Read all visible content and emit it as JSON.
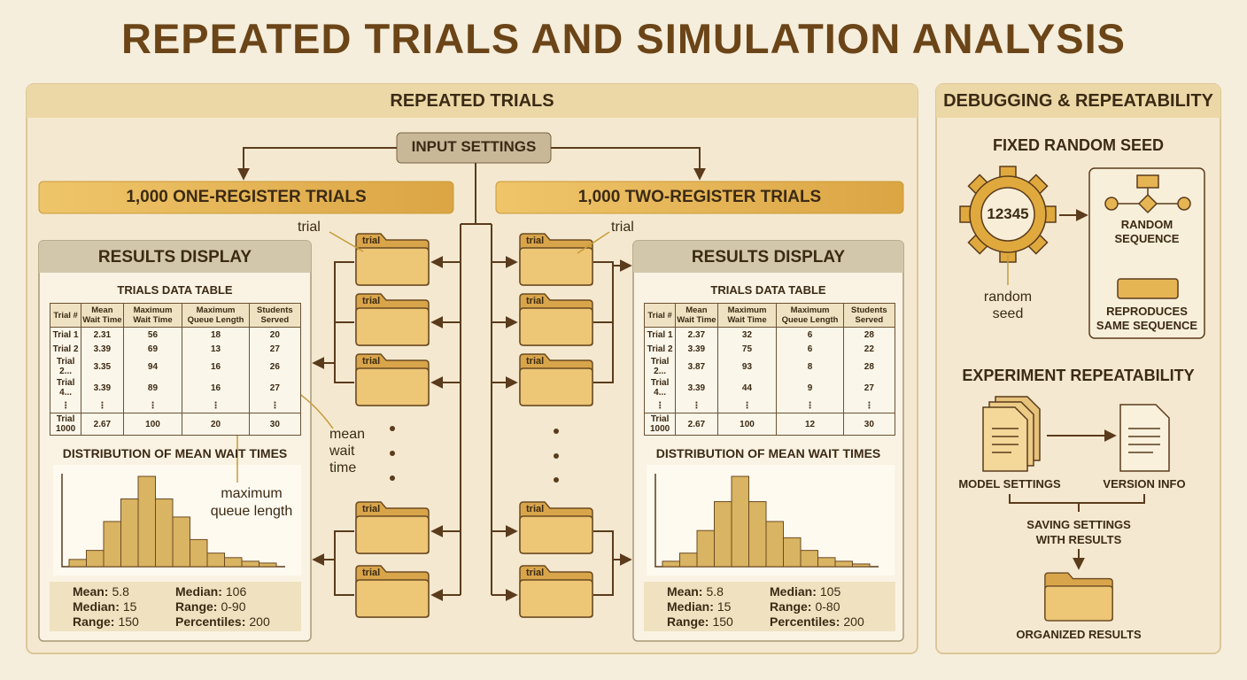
{
  "title": "REPEATED TRIALS AND SIMULATION ANALYSIS",
  "repeated_trials": {
    "heading": "REPEATED TRIALS",
    "input": "INPUT SETTINGS",
    "folder_label": "trial",
    "callouts": {
      "trial": "trial",
      "mean": "mean wait time",
      "queue": "maximum queue length"
    },
    "left": {
      "banner": "1,000 ONE-REGISTER TRIALS",
      "results": {
        "heading": "RESULTS DISPLAY",
        "table_title": "TRIALS DATA TABLE",
        "columns": [
          "Trial #",
          "Mean Wait Time",
          "Maximum Wait Time",
          "Maximum Queue Length",
          "Students Served"
        ],
        "rows": [
          [
            "Trial 1",
            "2.31",
            "56",
            "18",
            "20"
          ],
          [
            "Trial 2",
            "3.39",
            "69",
            "13",
            "27"
          ],
          [
            "Trial 2...",
            "3.35",
            "94",
            "16",
            "26"
          ],
          [
            "Trial 4...",
            "3.39",
            "89",
            "16",
            "27"
          ],
          [
            "⋮",
            "⋮",
            "⋮",
            "⋮",
            "⋮"
          ],
          [
            "Trial 1000",
            "2.67",
            "100",
            "20",
            "30"
          ]
        ],
        "histogram_title": "DISTRIBUTION OF MEAN WAIT TIMES",
        "histogram": {
          "color": "#d9b462",
          "counts": [
            8,
            18,
            50,
            75,
            100,
            75,
            55,
            30,
            15,
            10,
            6,
            4
          ]
        },
        "stats": [
          [
            {
              "label": "Mean:",
              "value": "5.8"
            },
            {
              "label": "Median:",
              "value": "15"
            },
            {
              "label": "Range:",
              "value": "150"
            }
          ],
          [
            {
              "label": "Median:",
              "value": "106"
            },
            {
              "label": "Range:",
              "value": "0-90"
            },
            {
              "label": "Percentiles:",
              "value": "200"
            }
          ]
        ]
      }
    },
    "right": {
      "banner": "1,000 TWO-REGISTER TRIALS",
      "results": {
        "heading": "RESULTS DISPLAY",
        "table_title": "TRIALS DATA TABLE",
        "columns": [
          "Trial #",
          "Mean Wait Time",
          "Maximum Wait Time",
          "Maximum Queue Length",
          "Students Served"
        ],
        "rows": [
          [
            "Trial 1",
            "2.37",
            "32",
            "6",
            "28"
          ],
          [
            "Trial 2",
            "3.39",
            "75",
            "6",
            "22"
          ],
          [
            "Trial 2...",
            "3.87",
            "93",
            "8",
            "28"
          ],
          [
            "Trial 4...",
            "3.39",
            "44",
            "9",
            "27"
          ],
          [
            "⋮",
            "⋮",
            "⋮",
            "⋮",
            "⋮"
          ],
          [
            "Trial 1000",
            "2.67",
            "100",
            "12",
            "30"
          ]
        ],
        "histogram_title": "DISTRIBUTION OF MEAN WAIT TIMES",
        "histogram": {
          "color": "#d9b462",
          "counts": [
            6,
            15,
            40,
            72,
            100,
            72,
            50,
            32,
            18,
            10,
            6,
            3
          ]
        },
        "stats": [
          [
            {
              "label": "Mean:",
              "value": "5.8"
            },
            {
              "label": "Median:",
              "value": "15"
            },
            {
              "label": "Range:",
              "value": "150"
            }
          ],
          [
            {
              "label": "Median:",
              "value": "105"
            },
            {
              "label": "Range:",
              "value": "0-80"
            },
            {
              "label": "Percentiles:",
              "value": "200"
            }
          ]
        ]
      }
    }
  },
  "debugging": {
    "heading": "DEBUGGING & REPEATABILITY",
    "seed_title": "FIXED RANDOM SEED",
    "seed": "12345",
    "seed_caption": "random seed",
    "sequence": "RANDOM SEQUENCE",
    "reproduces": "REPRODUCES SAME SEQUENCE",
    "repeat_title": "EXPERIMENT REPEATABILITY",
    "model_settings": "MODEL SETTINGS",
    "version_info": "VERSION INFO",
    "saving": "SAVING SETTINGS WITH RESULTS",
    "organized": "ORGANIZED RESULTS"
  }
}
